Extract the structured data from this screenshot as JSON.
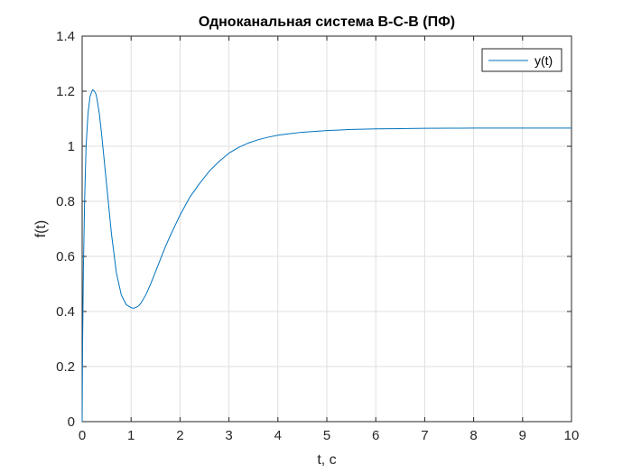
{
  "chart_data": {
    "type": "line",
    "title": "Одноканальная система В-С-В (ПФ)",
    "xlabel": "t, c",
    "ylabel": "f(t)",
    "xlim": [
      0,
      10
    ],
    "ylim": [
      0,
      1.4
    ],
    "xticks": [
      0,
      1,
      2,
      3,
      4,
      5,
      6,
      7,
      8,
      9,
      10
    ],
    "yticks": [
      0,
      0.2,
      0.4,
      0.6,
      0.8,
      1,
      1.2,
      1.4
    ],
    "xtick_labels": [
      "0",
      "1",
      "2",
      "3",
      "4",
      "5",
      "6",
      "7",
      "8",
      "9",
      "10"
    ],
    "ytick_labels": [
      "0",
      "0.2",
      "0.4",
      "0.6",
      "0.8",
      "1",
      "1.2",
      "1.4"
    ],
    "grid": true,
    "legend_position": "top-right",
    "colors": {
      "series": "#0072BD",
      "grid": "#DFDFDF",
      "axis": "#262626"
    },
    "series": [
      {
        "name": "y(t)",
        "x": [
          0,
          0.01,
          0.025,
          0.05,
          0.08,
          0.12,
          0.16,
          0.2,
          0.22,
          0.25,
          0.28,
          0.3,
          0.35,
          0.4,
          0.5,
          0.6,
          0.7,
          0.8,
          0.9,
          1.0,
          1.05,
          1.1,
          1.15,
          1.2,
          1.3,
          1.4,
          1.5,
          1.6,
          1.7,
          1.8,
          2.0,
          2.2,
          2.4,
          2.6,
          2.8,
          3.0,
          3.2,
          3.4,
          3.6,
          3.8,
          4.0,
          4.25,
          4.5,
          5.0,
          5.5,
          6.0,
          6.5,
          7.0,
          7.5,
          8.0,
          9.0,
          10.0
        ],
        "y": [
          0,
          0.3,
          0.55,
          0.8,
          1.0,
          1.12,
          1.18,
          1.2,
          1.205,
          1.2,
          1.19,
          1.175,
          1.12,
          1.04,
          0.86,
          0.68,
          0.54,
          0.46,
          0.425,
          0.414,
          0.412,
          0.415,
          0.42,
          0.43,
          0.46,
          0.5,
          0.545,
          0.59,
          0.635,
          0.675,
          0.75,
          0.815,
          0.865,
          0.91,
          0.945,
          0.975,
          0.996,
          1.012,
          1.024,
          1.033,
          1.04,
          1.046,
          1.051,
          1.057,
          1.061,
          1.063,
          1.064,
          1.065,
          1.0655,
          1.066,
          1.066,
          1.066
        ]
      }
    ]
  }
}
